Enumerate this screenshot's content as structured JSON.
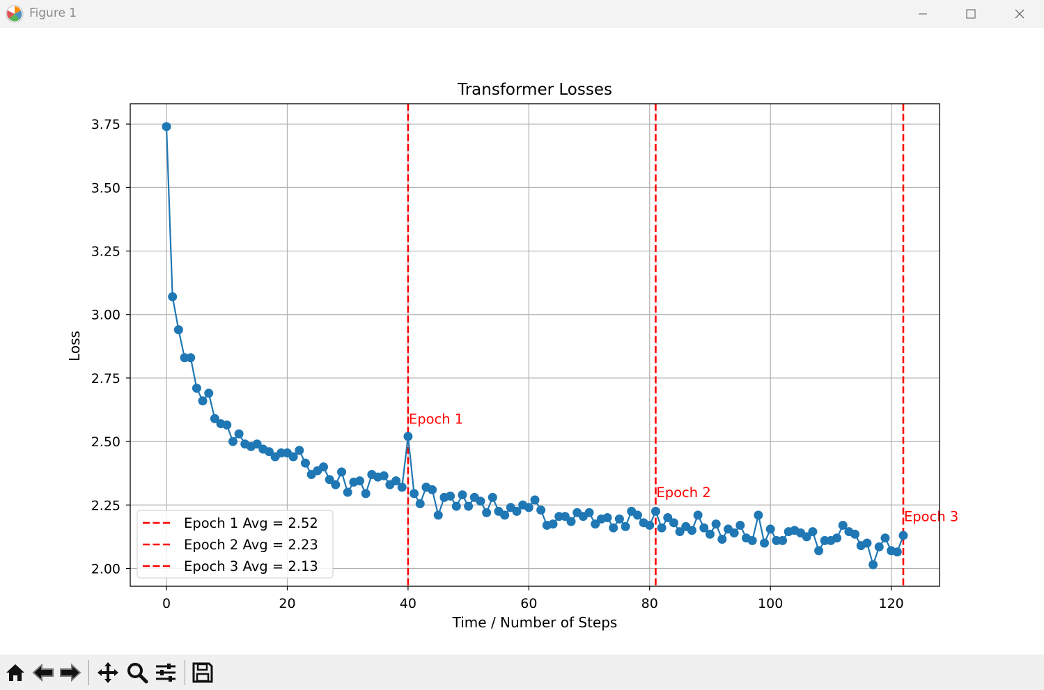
{
  "window": {
    "title": "Figure 1"
  },
  "toolbar": {
    "buttons": [
      "home",
      "back",
      "forward",
      "pan",
      "zoom",
      "configure-subplots",
      "save"
    ]
  },
  "chart_data": {
    "type": "line",
    "title": "Transformer Losses",
    "xlabel": "Time / Number of Steps",
    "ylabel": "Loss",
    "xlim": [
      -6,
      128
    ],
    "ylim": [
      1.93,
      3.83
    ],
    "xticks": [
      0,
      20,
      40,
      60,
      80,
      100,
      120
    ],
    "yticks": [
      2.0,
      2.25,
      2.5,
      2.75,
      3.0,
      3.25,
      3.5,
      3.75
    ],
    "xtick_labels": [
      "0",
      "20",
      "40",
      "60",
      "80",
      "100",
      "120"
    ],
    "ytick_labels": [
      "2.00",
      "2.25",
      "2.50",
      "2.75",
      "3.00",
      "3.25",
      "3.50",
      "3.75"
    ],
    "grid": true,
    "legend_position": "lower-left",
    "series": [
      {
        "color": "#1f77b4",
        "marker": "circle",
        "x": [
          0,
          1,
          2,
          3,
          4,
          5,
          6,
          7,
          8,
          9,
          10,
          11,
          12,
          13,
          14,
          15,
          16,
          17,
          18,
          19,
          20,
          21,
          22,
          23,
          24,
          25,
          26,
          27,
          28,
          29,
          30,
          31,
          32,
          33,
          34,
          35,
          36,
          37,
          38,
          39,
          40,
          41,
          42,
          43,
          44,
          45,
          46,
          47,
          48,
          49,
          50,
          51,
          52,
          53,
          54,
          55,
          56,
          57,
          58,
          59,
          60,
          61,
          62,
          63,
          64,
          65,
          66,
          67,
          68,
          69,
          70,
          71,
          72,
          73,
          74,
          75,
          76,
          77,
          78,
          79,
          80,
          81,
          82,
          83,
          84,
          85,
          86,
          87,
          88,
          89,
          90,
          91,
          92,
          93,
          94,
          95,
          96,
          97,
          98,
          99,
          100,
          101,
          102,
          103,
          104,
          105,
          106,
          107,
          108,
          109,
          110,
          111,
          112,
          113,
          114,
          115,
          116,
          117,
          118,
          119,
          120,
          121,
          122
        ],
        "y": [
          3.74,
          3.07,
          2.94,
          2.83,
          2.83,
          2.71,
          2.66,
          2.69,
          2.59,
          2.57,
          2.565,
          2.5,
          2.53,
          2.49,
          2.48,
          2.49,
          2.47,
          2.46,
          2.44,
          2.455,
          2.455,
          2.44,
          2.465,
          2.415,
          2.37,
          2.385,
          2.4,
          2.35,
          2.33,
          2.38,
          2.3,
          2.34,
          2.345,
          2.295,
          2.37,
          2.36,
          2.365,
          2.33,
          2.345,
          2.32,
          2.52,
          2.295,
          2.255,
          2.32,
          2.31,
          2.21,
          2.28,
          2.285,
          2.245,
          2.29,
          2.245,
          2.28,
          2.265,
          2.22,
          2.28,
          2.225,
          2.21,
          2.24,
          2.225,
          2.25,
          2.24,
          2.27,
          2.23,
          2.17,
          2.175,
          2.205,
          2.205,
          2.185,
          2.22,
          2.205,
          2.22,
          2.175,
          2.195,
          2.2,
          2.16,
          2.195,
          2.165,
          2.225,
          2.21,
          2.18,
          2.17,
          2.225,
          2.16,
          2.2,
          2.18,
          2.145,
          2.165,
          2.15,
          2.21,
          2.16,
          2.135,
          2.175,
          2.115,
          2.155,
          2.14,
          2.17,
          2.12,
          2.11,
          2.21,
          2.1,
          2.155,
          2.11,
          2.11,
          2.145,
          2.15,
          2.14,
          2.125,
          2.145,
          2.07,
          2.11,
          2.11,
          2.12,
          2.17,
          2.145,
          2.135,
          2.09,
          2.1,
          2.015,
          2.085,
          2.12,
          2.07,
          2.065,
          2.13
        ]
      }
    ],
    "epoch_lines": [
      {
        "x": 40,
        "label": "Epoch 1",
        "legend": "Epoch 1 Avg = 2.52",
        "text_y": 2.59,
        "color": "#ff0000"
      },
      {
        "x": 81,
        "label": "Epoch 2",
        "legend": "Epoch 2 Avg = 2.23",
        "text_y": 2.3,
        "color": "#ff0000"
      },
      {
        "x": 122,
        "label": "Epoch 3",
        "legend": "Epoch 3 Avg = 2.13",
        "text_y": 2.205,
        "color": "#ff0000"
      }
    ]
  }
}
